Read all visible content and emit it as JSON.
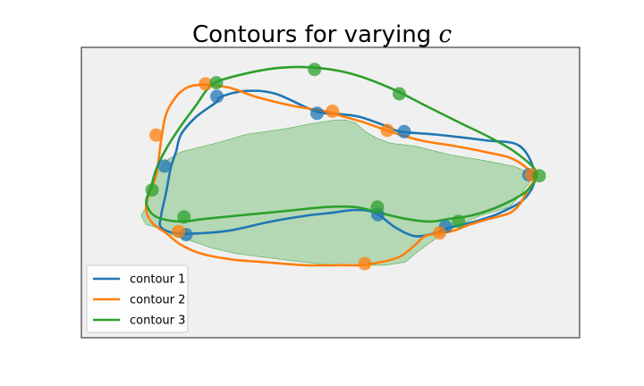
{
  "chart_data": {
    "type": "line",
    "title": "Contours for varying ",
    "title_variable": "c",
    "xlabel": "",
    "ylabel": "",
    "xlim": [
      0,
      100
    ],
    "ylim": [
      0,
      100
    ],
    "grid": false,
    "axes_facecolor": "#f0f0f0",
    "legend_placement": "lower-left",
    "filled_region": {
      "color": "#2ca02c",
      "alpha": 0.3,
      "points": [
        [
          13,
          45
        ],
        [
          14,
          51
        ],
        [
          15,
          56
        ],
        [
          17,
          61
        ],
        [
          20,
          64
        ],
        [
          27,
          67
        ],
        [
          33,
          70
        ],
        [
          41,
          72
        ],
        [
          47,
          74
        ],
        [
          51,
          75
        ],
        [
          53,
          75
        ],
        [
          55,
          74
        ],
        [
          57,
          71
        ],
        [
          59,
          69
        ],
        [
          62,
          67
        ],
        [
          67,
          66
        ],
        [
          74,
          63
        ],
        [
          81,
          61
        ],
        [
          87,
          59
        ],
        [
          91,
          56
        ],
        [
          88,
          49
        ],
        [
          86,
          45
        ],
        [
          80,
          42
        ],
        [
          75,
          38
        ],
        [
          71,
          34
        ],
        [
          67,
          29
        ],
        [
          65,
          26
        ],
        [
          61,
          25
        ],
        [
          56,
          25
        ],
        [
          50,
          25
        ],
        [
          40,
          27
        ],
        [
          31,
          29
        ],
        [
          26,
          31
        ],
        [
          21,
          34
        ],
        [
          17,
          36
        ],
        [
          15,
          38
        ],
        [
          13,
          39
        ],
        [
          12,
          42
        ]
      ]
    },
    "series": [
      {
        "name": "contour 1",
        "color": "#1f77b4",
        "closed": true,
        "points": [
          [
            27,
            81
          ],
          [
            28,
            83
          ],
          [
            33,
            85
          ],
          [
            39,
            84
          ],
          [
            47,
            78
          ],
          [
            52,
            77
          ],
          [
            56,
            76
          ],
          [
            61,
            73
          ],
          [
            64,
            71
          ],
          [
            71,
            70
          ],
          [
            81,
            68
          ],
          [
            88,
            66
          ],
          [
            91,
            56
          ],
          [
            89,
            48
          ],
          [
            84,
            43
          ],
          [
            79,
            40
          ],
          [
            74,
            38
          ],
          [
            71,
            36
          ],
          [
            67,
            35
          ],
          [
            63,
            38
          ],
          [
            59,
            43
          ],
          [
            55,
            44
          ],
          [
            50,
            43
          ],
          [
            45,
            42
          ],
          [
            38,
            40
          ],
          [
            30,
            37
          ],
          [
            24,
            36
          ],
          [
            19,
            36
          ],
          [
            16,
            38
          ],
          [
            16,
            42
          ],
          [
            17,
            50
          ],
          [
            18,
            59
          ],
          [
            19,
            64
          ],
          [
            20,
            70
          ],
          [
            23,
            76
          ]
        ],
        "markers": [
          [
            27.2,
            83.1
          ],
          [
            47.3,
            77.3
          ],
          [
            64.8,
            71.0
          ],
          [
            89.8,
            56.1
          ],
          [
            73.1,
            38.3
          ],
          [
            59.5,
            42.4
          ],
          [
            21.0,
            35.5
          ],
          [
            16.7,
            59.1
          ]
        ]
      },
      {
        "name": "contour 2",
        "color": "#ff7f0e",
        "closed": true,
        "points": [
          [
            21,
            86
          ],
          [
            23,
            87
          ],
          [
            26,
            87
          ],
          [
            30,
            86
          ],
          [
            35,
            83
          ],
          [
            42,
            80
          ],
          [
            49,
            78
          ],
          [
            51,
            77
          ],
          [
            53,
            76
          ],
          [
            57,
            74
          ],
          [
            62,
            71
          ],
          [
            68,
            68
          ],
          [
            75,
            66
          ],
          [
            81,
            64
          ],
          [
            86,
            62
          ],
          [
            89,
            59
          ],
          [
            91,
            55
          ],
          [
            90,
            52
          ],
          [
            89,
            49
          ],
          [
            88,
            46
          ],
          [
            86,
            43
          ],
          [
            82,
            41
          ],
          [
            78,
            39
          ],
          [
            75,
            37
          ],
          [
            72,
            36
          ],
          [
            69,
            35
          ],
          [
            67,
            32
          ],
          [
            64,
            28
          ],
          [
            60,
            26
          ],
          [
            56,
            25
          ],
          [
            52,
            25
          ],
          [
            45,
            25
          ],
          [
            37,
            26
          ],
          [
            30,
            27
          ],
          [
            24,
            29
          ],
          [
            20,
            32
          ],
          [
            17,
            36
          ],
          [
            14,
            40
          ],
          [
            13,
            46
          ],
          [
            15,
            56
          ],
          [
            16,
            68
          ],
          [
            17,
            77
          ],
          [
            19,
            83
          ]
        ],
        "markers": [
          [
            24.9,
            87.4
          ],
          [
            50.4,
            78.0
          ],
          [
            61.4,
            71.4
          ],
          [
            90.4,
            56.1
          ],
          [
            71.9,
            36.1
          ],
          [
            56.9,
            25.5
          ],
          [
            19.5,
            36.6
          ],
          [
            15.0,
            69.8
          ]
        ]
      },
      {
        "name": "contour 3",
        "color": "#2ca02c",
        "closed": true,
        "points": [
          [
            27,
            88
          ],
          [
            33,
            91
          ],
          [
            40,
            93
          ],
          [
            47,
            93
          ],
          [
            54,
            91
          ],
          [
            62,
            86
          ],
          [
            69,
            80
          ],
          [
            76,
            74
          ],
          [
            82,
            69
          ],
          [
            87,
            64
          ],
          [
            91,
            58
          ],
          [
            91,
            54
          ],
          [
            89,
            50
          ],
          [
            86,
            47
          ],
          [
            82,
            44
          ],
          [
            78,
            42
          ],
          [
            74,
            41
          ],
          [
            70,
            40
          ],
          [
            65,
            41
          ],
          [
            60,
            43
          ],
          [
            55,
            45
          ],
          [
            49,
            45
          ],
          [
            43,
            44
          ],
          [
            37,
            43
          ],
          [
            31,
            42
          ],
          [
            25,
            41
          ],
          [
            20,
            40
          ],
          [
            16,
            41
          ],
          [
            14,
            43
          ],
          [
            13,
            47
          ],
          [
            14,
            52
          ],
          [
            15,
            58
          ],
          [
            17,
            65
          ],
          [
            20,
            73
          ],
          [
            23,
            80
          ],
          [
            25,
            85
          ]
        ],
        "markers": [
          [
            27.1,
            87.8
          ],
          [
            46.8,
            92.4
          ],
          [
            63.8,
            84.0
          ],
          [
            91.9,
            55.8
          ],
          [
            75.7,
            40.1
          ],
          [
            59.4,
            45.0
          ],
          [
            20.6,
            41.6
          ],
          [
            14.2,
            50.9
          ]
        ]
      }
    ]
  }
}
